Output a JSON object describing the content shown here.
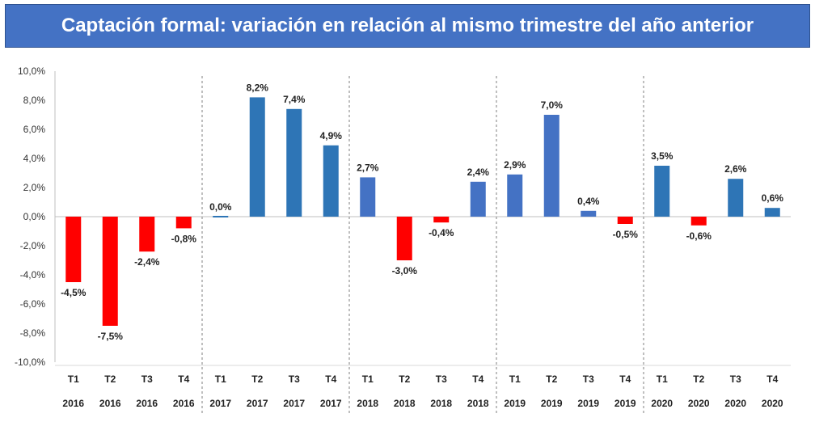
{
  "chart_data": {
    "type": "bar",
    "title": "Captación formal: variación en relación al mismo trimestre del año anterior",
    "ylim": [
      -10,
      10
    ],
    "yticks": [
      "10,0%",
      "8,0%",
      "6,0%",
      "4,0%",
      "2,0%",
      "0,0%",
      "-2,0%",
      "-4,0%",
      "-6,0%",
      "-8,0%",
      "-10,0%"
    ],
    "ytick_values": [
      10,
      8,
      6,
      4,
      2,
      0,
      -2,
      -4,
      -6,
      -8,
      -10
    ],
    "grid": false,
    "categories": [
      {
        "quarter": "T1",
        "year": "2016"
      },
      {
        "quarter": "T2",
        "year": "2016"
      },
      {
        "quarter": "T3",
        "year": "2016"
      },
      {
        "quarter": "T4",
        "year": "2016"
      },
      {
        "quarter": "T1",
        "year": "2017"
      },
      {
        "quarter": "T2",
        "year": "2017"
      },
      {
        "quarter": "T3",
        "year": "2017"
      },
      {
        "quarter": "T4",
        "year": "2017"
      },
      {
        "quarter": "T1",
        "year": "2018"
      },
      {
        "quarter": "T2",
        "year": "2018"
      },
      {
        "quarter": "T3",
        "year": "2018"
      },
      {
        "quarter": "T4",
        "year": "2018"
      },
      {
        "quarter": "T1",
        "year": "2019"
      },
      {
        "quarter": "T2",
        "year": "2019"
      },
      {
        "quarter": "T3",
        "year": "2019"
      },
      {
        "quarter": "T4",
        "year": "2019"
      },
      {
        "quarter": "T1",
        "year": "2020"
      },
      {
        "quarter": "T2",
        "year": "2020"
      },
      {
        "quarter": "T3",
        "year": "2020"
      },
      {
        "quarter": "T4",
        "year": "2020"
      }
    ],
    "values": [
      -4.5,
      -7.5,
      -2.4,
      -0.8,
      0.0,
      8.2,
      7.4,
      4.9,
      2.7,
      -3.0,
      -0.4,
      2.4,
      2.9,
      7.0,
      0.4,
      -0.5,
      3.5,
      -0.6,
      2.6,
      0.6
    ],
    "labels": [
      "-4,5%",
      "-7,5%",
      "-2,4%",
      "-0,8%",
      "0,0%",
      "8,2%",
      "7,4%",
      "4,9%",
      "2,7%",
      "-3,0%",
      "-0,4%",
      "2,4%",
      "2,9%",
      "7,0%",
      "0,4%",
      "-0,5%",
      "3,5%",
      "-0,6%",
      "2,6%",
      "0,6%"
    ],
    "colors": {
      "2016": "#ff0000",
      "2017": "#2e75b6",
      "2018": "#4472c4",
      "2019": "#4472c4",
      "2020": "#2e75b6",
      "negative_other": "#ff0000"
    },
    "year_separators_after": [
      "T4 2016",
      "T4 2017",
      "T4 2018",
      "T4 2019"
    ]
  }
}
